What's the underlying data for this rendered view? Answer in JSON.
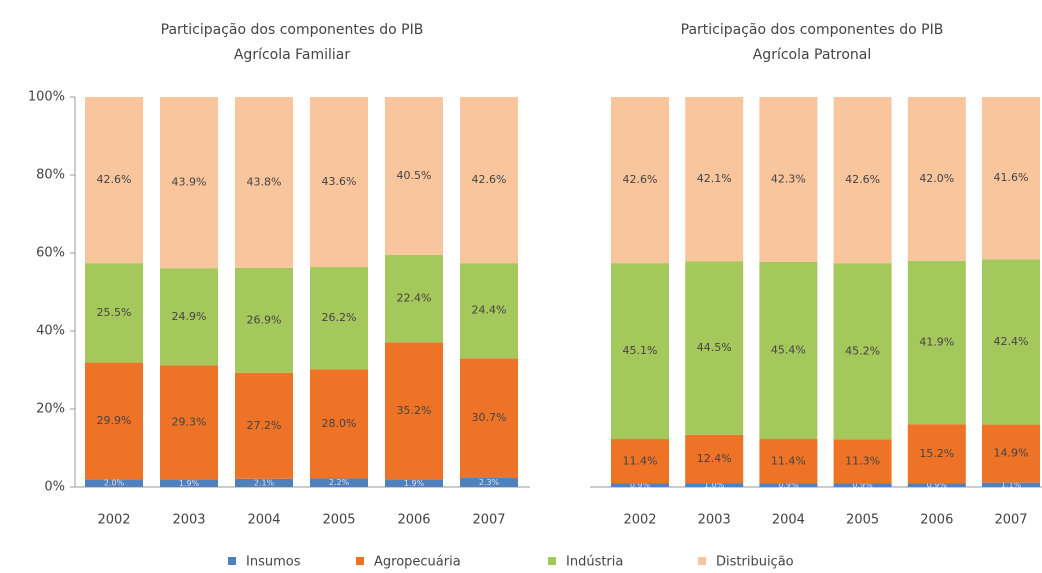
{
  "chart_data": [
    {
      "type": "stacked-bar",
      "title": [
        "Participação  dos componentes do PIB",
        "Agrícola Familiar"
      ],
      "categories": [
        "2002",
        "2003",
        "2004",
        "2005",
        "2006",
        "2007"
      ],
      "ylim": [
        0,
        100
      ],
      "yticks": [
        {
          "value": 0,
          "label": "0%"
        },
        {
          "value": 20,
          "label": "20%"
        },
        {
          "value": 40,
          "label": "40%"
        },
        {
          "value": 60,
          "label": "60%"
        },
        {
          "value": 80,
          "label": "80%"
        },
        {
          "value": 100,
          "label": "100%"
        }
      ],
      "series": [
        {
          "name": "Insumos",
          "color": "#4f81bd",
          "values": [
            2.0,
            1.9,
            2.1,
            2.2,
            1.9,
            2.3
          ],
          "value_labels": [
            "2.0%",
            "1.9%",
            "2.1%",
            "2.2%",
            "1.9%",
            "2.3%"
          ]
        },
        {
          "name": "Agropecuária",
          "color": "#ee7326",
          "values": [
            29.9,
            29.3,
            27.2,
            28.0,
            35.2,
            30.7
          ],
          "value_labels": [
            "29.9%",
            "29.3%",
            "27.2%",
            "28.0%",
            "35.2%",
            "30.7%"
          ]
        },
        {
          "name": "Indústria",
          "color": "#a5c85c",
          "values": [
            25.5,
            24.9,
            26.9,
            26.2,
            22.4,
            24.4
          ],
          "value_labels": [
            "25.5%",
            "24.9%",
            "26.9%",
            "26.2%",
            "22.4%",
            "24.4%"
          ]
        },
        {
          "name": "Distribuição",
          "color": "#f9c59c",
          "values": [
            42.6,
            43.9,
            43.8,
            43.6,
            40.5,
            42.6
          ],
          "value_labels": [
            "42.6%",
            "43.9%",
            "43.8%",
            "43.6%",
            "40.5%",
            "42.6%"
          ]
        }
      ]
    },
    {
      "type": "stacked-bar",
      "title": [
        "Participação  dos componentes do PIB",
        "Agrícola Patronal"
      ],
      "categories": [
        "2002",
        "2003",
        "2004",
        "2005",
        "2006",
        "2007"
      ],
      "ylim": [
        0,
        100
      ],
      "series": [
        {
          "values": [
            0.9,
            1.0,
            0.9,
            0.9,
            0.9,
            1.1
          ],
          "value_labels": [
            "0.9%",
            "1.0%",
            "0.9%",
            "0.9%",
            "0.9%",
            "1.1%"
          ]
        },
        {
          "values": [
            11.4,
            12.4,
            11.4,
            11.3,
            15.2,
            14.9
          ],
          "value_labels": [
            "11.4%",
            "12.4%",
            "11.4%",
            "11.3%",
            "15.2%",
            "14.9%"
          ]
        },
        {
          "values": [
            45.1,
            44.5,
            45.4,
            45.2,
            41.9,
            42.4
          ],
          "value_labels": [
            "45.1%",
            "44.5%",
            "45.4%",
            "45.2%",
            "41.9%",
            "42.4%"
          ]
        },
        {
          "values": [
            42.6,
            42.1,
            42.3,
            42.6,
            42.0,
            41.6
          ],
          "value_labels": [
            "42.6%",
            "42.1%",
            "42.3%",
            "42.6%",
            "42.0%",
            "41.6%"
          ]
        }
      ]
    }
  ]
}
